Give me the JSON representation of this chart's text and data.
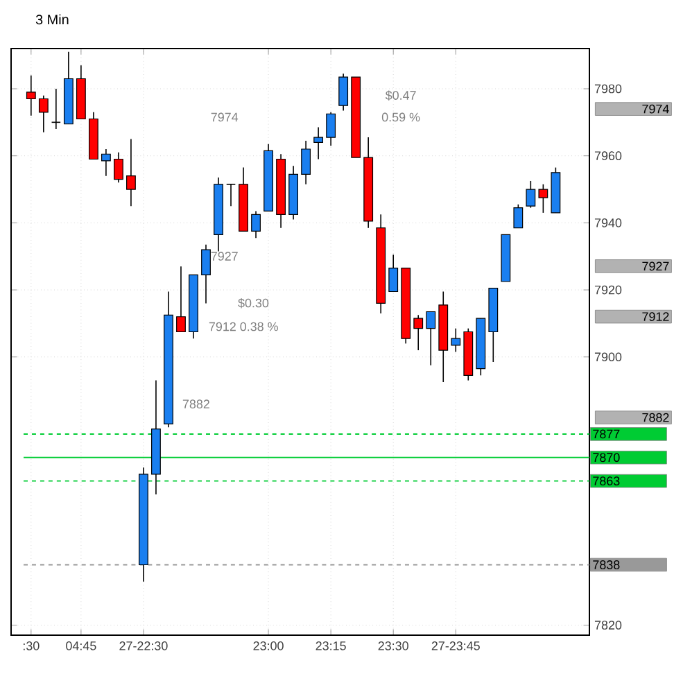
{
  "chart_data": {
    "type": "candlestick",
    "title": "3 Min",
    "categories": [
      ":30",
      null,
      null,
      null,
      "04:45",
      null,
      null,
      null,
      null,
      "27-22:30",
      null,
      null,
      null,
      null,
      null,
      null,
      null,
      null,
      null,
      "23:00",
      null,
      null,
      null,
      null,
      "23:15",
      null,
      null,
      null,
      null,
      "23:30",
      null,
      null,
      null,
      null,
      "27-23:45",
      null,
      null,
      null,
      null,
      null,
      null,
      null,
      null
    ],
    "ohlc": [
      [
        7979,
        7984,
        7972,
        7977
      ],
      [
        7977,
        7978,
        7967,
        7973
      ],
      [
        7970,
        7980,
        7968,
        7970
      ],
      [
        7969.5,
        7991,
        7969.5,
        7983
      ],
      [
        7983,
        7987,
        7971,
        7971
      ],
      [
        7971,
        7973,
        7959,
        7959
      ],
      [
        7958.5,
        7962,
        7954,
        7960.5
      ],
      [
        7959,
        7961,
        7952,
        7953
      ],
      [
        7954,
        7965,
        7945,
        7950
      ],
      [
        7838,
        7867,
        7833,
        7865
      ],
      [
        7865,
        7893,
        7859,
        7878.5
      ],
      [
        7880,
        7919.5,
        7879,
        7912.5
      ],
      [
        7912,
        7927,
        7907.5,
        7907.5
      ],
      [
        7907.5,
        7924.5,
        7905.5,
        7924.5
      ],
      [
        7924.5,
        7933.5,
        7916,
        7932
      ],
      [
        7936.5,
        7953.5,
        7931.5,
        7951.5
      ],
      [
        7951.5,
        7951.5,
        7945,
        7951.5
      ],
      [
        7951.5,
        7956.5,
        7937.5,
        7937.5
      ],
      [
        7937.5,
        7943.5,
        7935.5,
        7942.5
      ],
      [
        7943.5,
        7963.5,
        7943.5,
        7961.5
      ],
      [
        7959,
        7960.5,
        7938.5,
        7942.5
      ],
      [
        7942.5,
        7957,
        7941,
        7954.5
      ],
      [
        7954.5,
        7964.5,
        7951.5,
        7962
      ],
      [
        7964,
        7968.5,
        7959,
        7965.5
      ],
      [
        7965.5,
        7973,
        7963,
        7972.5
      ],
      [
        7975,
        7984.5,
        7973.5,
        7983.5
      ],
      [
        7983.5,
        7983.5,
        7959.5,
        7959.5
      ],
      [
        7959.5,
        7965.5,
        7938.5,
        7940.5
      ],
      [
        7938.5,
        7942.5,
        7913,
        7916
      ],
      [
        7919.5,
        7930.5,
        7919.5,
        7926.5
      ],
      [
        7926.5,
        7926.5,
        7904,
        7905.5
      ],
      [
        7911.5,
        7912.5,
        7902,
        7908.5
      ],
      [
        7908.5,
        7913.5,
        7897.5,
        7913.5
      ],
      [
        7915.5,
        7919.5,
        7892.5,
        7902
      ],
      [
        7903.5,
        7908.5,
        7901.5,
        7905.5
      ],
      [
        7907.5,
        7908.5,
        7893,
        7894.5
      ],
      [
        7896.5,
        7911.5,
        7894.5,
        7911.5
      ],
      [
        7907.5,
        7920.5,
        7898.5,
        7920.5
      ],
      [
        7922.5,
        7936.5,
        7922.5,
        7936.5
      ],
      [
        7938.5,
        7945.5,
        7938.5,
        7944.5
      ],
      [
        7945,
        7952.5,
        7944.5,
        7950
      ],
      [
        7950,
        7951.5,
        7943,
        7947.5
      ],
      [
        7943,
        7956.5,
        7943,
        7955
      ]
    ],
    "colors": [
      "#ff0000",
      "#ff0000",
      "#000000",
      "#1a7ff0",
      "#ff0000",
      "#ff0000",
      "#1a7ff0",
      "#ff0000",
      "#ff0000",
      "#1a7ff0",
      "#1a7ff0",
      "#1a7ff0",
      "#ff0000",
      "#1a7ff0",
      "#1a7ff0",
      "#1a7ff0",
      "#000000",
      "#ff0000",
      "#1a7ff0",
      "#1a7ff0",
      "#ff0000",
      "#1a7ff0",
      "#1a7ff0",
      "#1a7ff0",
      "#1a7ff0",
      "#1a7ff0",
      "#ff0000",
      "#ff0000",
      "#ff0000",
      "#1a7ff0",
      "#ff0000",
      "#ff0000",
      "#1a7ff0",
      "#ff0000",
      "#1a7ff0",
      "#ff0000",
      "#1a7ff0",
      "#1a7ff0",
      "#1a7ff0",
      "#1a7ff0",
      "#1a7ff0",
      "#ff0000",
      "#1a7ff0"
    ],
    "ylim": [
      7817,
      7992
    ],
    "yticks": [
      7820,
      7900,
      7920,
      7940,
      7960,
      7980
    ],
    "grid": true,
    "ref_lines": [
      {
        "axis": "y",
        "value": 7877,
        "label": "7877",
        "color": "#00cc33",
        "line_style": "dashed"
      },
      {
        "axis": "y",
        "value": 7870,
        "label": "7870",
        "color": "#00cc33",
        "line_style": "solid"
      },
      {
        "axis": "y",
        "value": 7863,
        "label": "7863",
        "color": "#00cc33",
        "line_style": "dashed"
      },
      {
        "axis": "y",
        "value": 7838,
        "label": "7838",
        "color": "#999999",
        "line_style": "dashed"
      }
    ],
    "annotations": [
      "7974",
      "7927",
      "7912",
      "7882",
      "7974",
      "$0.47",
      "0.59 %",
      "7927",
      "$0.30",
      "7912 0.38 %",
      "7882"
    ]
  }
}
